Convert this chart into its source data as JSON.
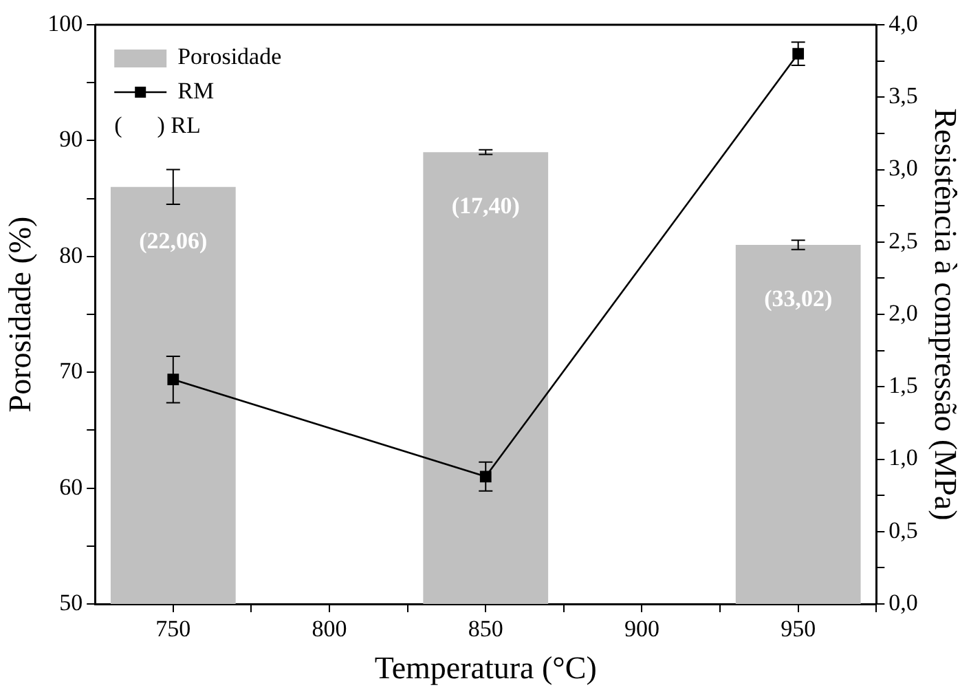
{
  "chart_data": {
    "type": "bar",
    "xlabel": "Temperatura (°C)",
    "ylabel": "Porosidade (%)",
    "y2label": "Resistência à compressão (MPa)",
    "x": [
      750,
      850,
      950
    ],
    "xlim": [
      725,
      975
    ],
    "xticks": [
      750,
      {
        "value": 775,
        "label": null
      },
      800,
      {
        "value": 825,
        "label": null
      },
      850,
      {
        "value": 875,
        "label": null
      },
      900,
      {
        "value": 925,
        "label": null
      },
      950,
      {
        "value": 975,
        "label": null
      }
    ],
    "ylim": [
      50,
      100
    ],
    "yticks": [
      50,
      {
        "value": 55,
        "label": null
      },
      60,
      {
        "value": 65,
        "label": null
      },
      70,
      {
        "value": 75,
        "label": null
      },
      80,
      {
        "value": 85,
        "label": null
      },
      90,
      {
        "value": 95,
        "label": null
      },
      100
    ],
    "y2lim": [
      0,
      4
    ],
    "y2ticks": [
      {
        "value": 0,
        "label": "0,0"
      },
      {
        "value": 0.25,
        "label": null
      },
      {
        "value": 0.5,
        "label": "0,5"
      },
      {
        "value": 0.75,
        "label": null
      },
      {
        "value": 1,
        "label": "1,0"
      },
      {
        "value": 1.25,
        "label": null
      },
      {
        "value": 1.5,
        "label": "1,5"
      },
      {
        "value": 1.75,
        "label": null
      },
      {
        "value": 2,
        "label": "2,0"
      },
      {
        "value": 2.25,
        "label": null
      },
      {
        "value": 2.5,
        "label": "2,5"
      },
      {
        "value": 2.75,
        "label": null
      },
      {
        "value": 3,
        "label": "3,0"
      },
      {
        "value": 3.25,
        "label": null
      },
      {
        "value": 3.5,
        "label": "3,5"
      },
      {
        "value": 3.75,
        "label": null
      },
      {
        "value": 4,
        "label": "4,0"
      }
    ],
    "series": [
      {
        "name": "Porosidade",
        "color": "#c0c0c0",
        "values": [
          86,
          89,
          81
        ],
        "errors": [
          1.5,
          0.2,
          0.4
        ]
      },
      {
        "name": "RM",
        "type": "line",
        "axis": "y2",
        "color": "#000000",
        "values": [
          1.55,
          0.88,
          3.8
        ],
        "errors": [
          0.16,
          0.1,
          0.08
        ]
      }
    ],
    "marker": "square",
    "line_style": "solid",
    "grid": false,
    "legend": "top left",
    "annotations": [
      "(      ) RL",
      "(22,06)",
      "(17,40)",
      "(33,02)"
    ]
  }
}
